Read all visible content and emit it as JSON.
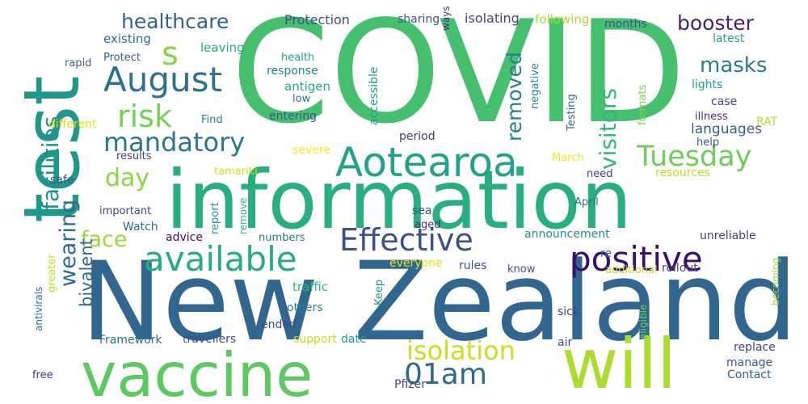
{
  "words": [
    {
      "text": "COVID",
      "color": "#46c06f"
    },
    {
      "text": "information",
      "color": "#29af7f"
    },
    {
      "text": "New Zealand",
      "color": "#31668e"
    },
    {
      "text": "test",
      "color": "#1f988b"
    },
    {
      "text": "vaccine",
      "color": "#5ec962"
    },
    {
      "text": "will",
      "color": "#addc30"
    },
    {
      "text": "Aotearoa",
      "color": "#20a386"
    },
    {
      "text": "available",
      "color": "#26ad81"
    },
    {
      "text": "positive",
      "color": "#3b0f70"
    },
    {
      "text": "Effective",
      "color": "#3b528b"
    },
    {
      "text": "Tuesday",
      "color": "#6ece58"
    },
    {
      "text": "August",
      "color": "#2c728e"
    },
    {
      "text": "isolation",
      "color": "#c8e020"
    },
    {
      "text": "01am",
      "color": "#31688e"
    },
    {
      "text": "risk",
      "color": "#75d054"
    },
    {
      "text": "mandatory",
      "color": "#2a788e"
    },
    {
      "text": "facilities",
      "color": "#21918c"
    },
    {
      "text": "wearing",
      "color": "#2e6d8e"
    },
    {
      "text": "visitors",
      "color": "#35b779"
    },
    {
      "text": "removed",
      "color": "#277f8e"
    },
    {
      "text": "masks",
      "color": "#287c8e"
    },
    {
      "text": "booster",
      "color": "#482173"
    },
    {
      "text": "healthcare",
      "color": "#33638d"
    },
    {
      "text": "s",
      "color": "#86d549"
    },
    {
      "text": "day",
      "color": "#8bd646"
    },
    {
      "text": "face",
      "color": "#9bd93c"
    },
    {
      "text": "bivalent",
      "color": "#306a8e"
    },
    {
      "text": "languages",
      "color": "#355f8d"
    },
    {
      "text": "Protection",
      "color": "#3e4c8a"
    },
    {
      "text": "sharing",
      "color": "#38588c"
    },
    {
      "text": "isolating",
      "color": "#3f4788"
    },
    {
      "text": "following",
      "color": "#a8db34"
    },
    {
      "text": "months",
      "color": "#3a548c"
    },
    {
      "text": "existing",
      "color": "#2d708e"
    },
    {
      "text": "leaving",
      "color": "#25ab82"
    },
    {
      "text": "latest",
      "color": "#1fa187"
    },
    {
      "text": "ways",
      "color": "#472d7b"
    },
    {
      "text": "rapid",
      "color": "#31678e"
    },
    {
      "text": "Protect",
      "color": "#355e8d"
    },
    {
      "text": "health",
      "color": "#22a785"
    },
    {
      "text": "response",
      "color": "#25838e"
    },
    {
      "text": "antigen",
      "color": "#22a884"
    },
    {
      "text": "low",
      "color": "#2e6f8e"
    },
    {
      "text": "entering",
      "color": "#38598c"
    },
    {
      "text": "accessible",
      "color": "#1f9e89"
    },
    {
      "text": "negative",
      "color": "#23888e"
    },
    {
      "text": "Testing",
      "color": "#2c718e"
    },
    {
      "text": "formats",
      "color": "#7ad151"
    },
    {
      "text": "lights",
      "color": "#20a386"
    },
    {
      "text": "case",
      "color": "#3e4989"
    },
    {
      "text": "illness",
      "color": "#46337f"
    },
    {
      "text": "RAT",
      "color": "#b5de2b"
    },
    {
      "text": "different",
      "color": "#dde318"
    },
    {
      "text": "Find",
      "color": "#26828e"
    },
    {
      "text": "period",
      "color": "#443a83"
    },
    {
      "text": "results",
      "color": "#424086"
    },
    {
      "text": "severe",
      "color": "#fde725"
    },
    {
      "text": "March",
      "color": "#f1e51d"
    },
    {
      "text": "help",
      "color": "#38588c"
    },
    {
      "text": "safe",
      "color": "#3b528b"
    },
    {
      "text": "tamariki",
      "color": "#d0e11c"
    },
    {
      "text": "need",
      "color": "#443b84"
    },
    {
      "text": "resources",
      "color": "#bade28"
    },
    {
      "text": "important",
      "color": "#3f4889"
    },
    {
      "text": "sea",
      "color": "#3b528b"
    },
    {
      "text": "report",
      "color": "#1f9a8a"
    },
    {
      "text": "April",
      "color": "#2d708e"
    },
    {
      "text": "Watch",
      "color": "#2f6b8e"
    },
    {
      "text": "remove",
      "color": "#2db27d"
    },
    {
      "text": "aged",
      "color": "#46307e"
    },
    {
      "text": "advice",
      "color": "#46085c"
    },
    {
      "text": "numbers",
      "color": "#2a788e"
    },
    {
      "text": "announcement",
      "color": "#228c8d"
    },
    {
      "text": "re",
      "color": "#31688e"
    },
    {
      "text": "unreliable",
      "color": "#424186"
    },
    {
      "text": "greater",
      "color": "#c0df25"
    },
    {
      "text": "everyone",
      "color": "#e2e418"
    },
    {
      "text": "rules",
      "color": "#3a548c"
    },
    {
      "text": "know",
      "color": "#3b528b"
    },
    {
      "text": "additional",
      "color": "#b8de29"
    },
    {
      "text": "rollout",
      "color": "#3e4989"
    },
    {
      "text": "becoming",
      "color": "#9dd93b"
    },
    {
      "text": "antivirals",
      "color": "#2e6e8e"
    },
    {
      "text": "traffic",
      "color": "#31b57b"
    },
    {
      "text": "Keep",
      "color": "#1f968b"
    },
    {
      "text": "others",
      "color": "#25858e"
    },
    {
      "text": "sick",
      "color": "#414487"
    },
    {
      "text": "eligible",
      "color": "#6ccd5a"
    },
    {
      "text": "ended",
      "color": "#3f4788"
    },
    {
      "text": "Framework",
      "color": "#2b748e"
    },
    {
      "text": "travellers",
      "color": "#3d4e8a"
    },
    {
      "text": "support",
      "color": "#c5e021"
    },
    {
      "text": "date",
      "color": "#1e9b8a"
    },
    {
      "text": "air",
      "color": "#3b528b"
    },
    {
      "text": "replace",
      "color": "#424086"
    },
    {
      "text": "manage",
      "color": "#38598c"
    },
    {
      "text": "free",
      "color": "#453781"
    },
    {
      "text": "Pfizer",
      "color": "#3f4788"
    },
    {
      "text": "Contact",
      "color": "#33638d"
    }
  ]
}
